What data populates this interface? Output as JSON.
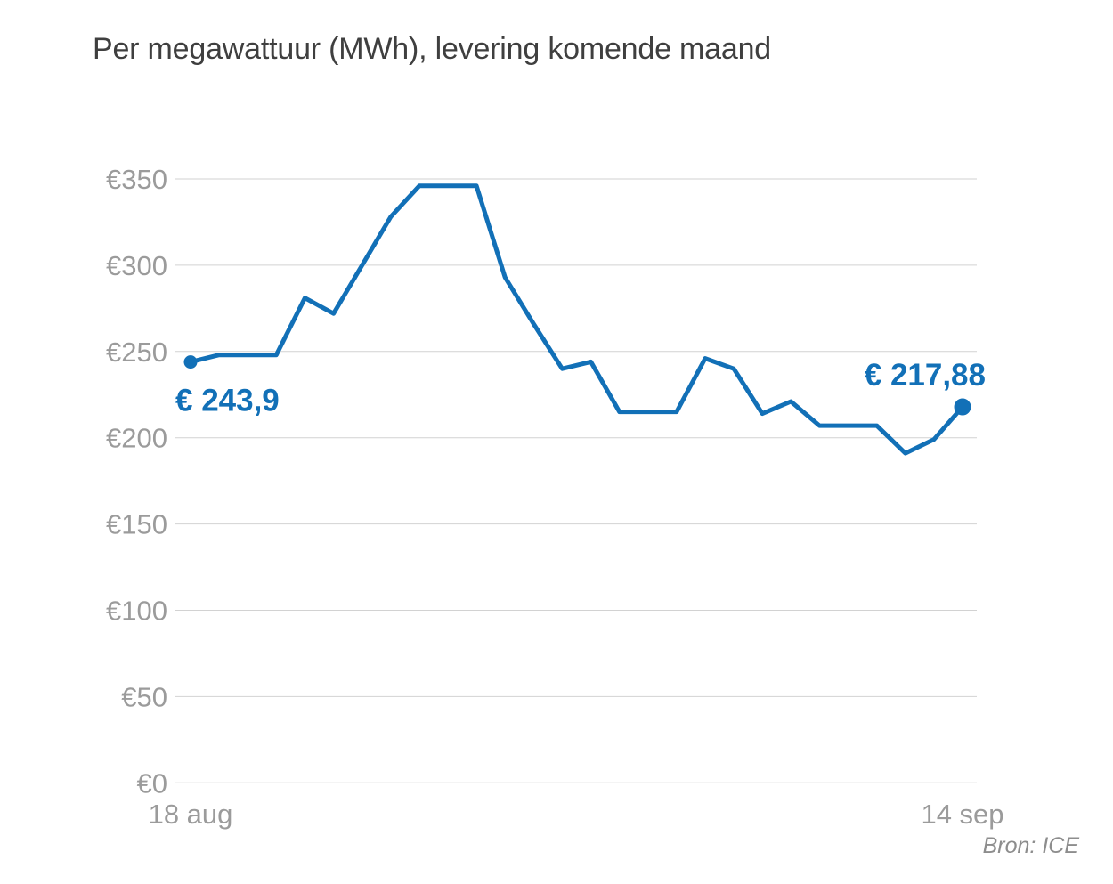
{
  "chart_data": {
    "type": "line",
    "title": "Per megawattuur (MWh), levering komende maand",
    "source": "Bron: ICE",
    "grid": "horizontal",
    "legend": "none",
    "ylim": [
      0,
      350
    ],
    "x": [
      "18 aug",
      "19 aug",
      "20 aug",
      "21 aug",
      "22 aug",
      "23 aug",
      "24 aug",
      "25 aug",
      "26 aug",
      "27 aug",
      "28 aug",
      "29 aug",
      "30 aug",
      "31 aug",
      "1 sep",
      "2 sep",
      "3 sep",
      "4 sep",
      "5 sep",
      "6 sep",
      "7 sep",
      "8 sep",
      "9 sep",
      "10 sep",
      "11 sep",
      "12 sep",
      "13 sep",
      "14 sep"
    ],
    "values": [
      243.9,
      248,
      248,
      248,
      281,
      272,
      300,
      328,
      346,
      346,
      346,
      293,
      266,
      240,
      244,
      215,
      215,
      215,
      246,
      240,
      214,
      221,
      207,
      207,
      207,
      191,
      199,
      217.88
    ],
    "y_ticks": [
      {
        "value": 0,
        "label": "€0"
      },
      {
        "value": 50,
        "label": "€50"
      },
      {
        "value": 100,
        "label": "€100"
      },
      {
        "value": 150,
        "label": "€150"
      },
      {
        "value": 200,
        "label": "€200"
      },
      {
        "value": 250,
        "label": "€250"
      },
      {
        "value": 300,
        "label": "€300"
      },
      {
        "value": 350,
        "label": "€350"
      }
    ],
    "x_ticks": [
      {
        "point_index": 0,
        "label": "18 aug"
      },
      {
        "point_index": 27,
        "label": "14 sep"
      }
    ],
    "annotations": [
      {
        "point_index": 0,
        "text": "€ 243,9",
        "placement": "below"
      },
      {
        "point_index": 27,
        "text": "€ 217,88",
        "placement": "above"
      }
    ],
    "colors": {
      "line": "#1270b7",
      "title": "#3f3f3f",
      "axis_labels": "#9b9b9b",
      "grid": "#d2d2d2",
      "source": "#8d8d8d",
      "background": "#ffffff"
    }
  }
}
